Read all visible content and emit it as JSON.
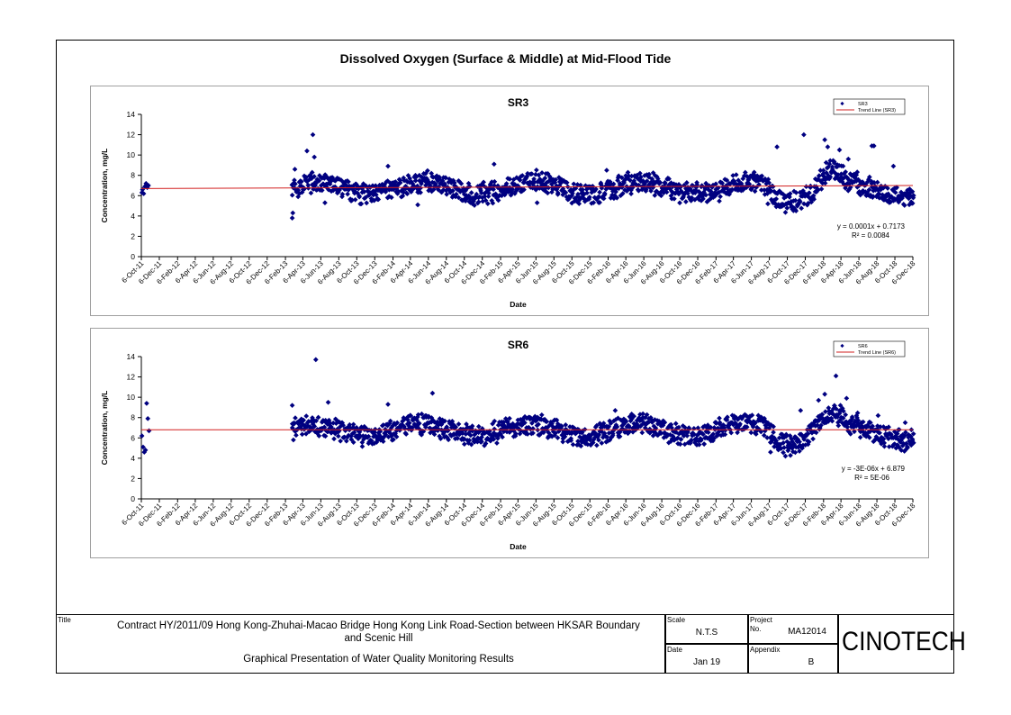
{
  "main_title": "Dissolved Oxygen (Surface & Middle) at Mid-Flood Tide",
  "x_tick_labels": [
    "6-Oct-11",
    "6-Dec-11",
    "6-Feb-12",
    "6-Apr-12",
    "6-Jun-12",
    "6-Aug-12",
    "6-Oct-12",
    "6-Dec-12",
    "6-Feb-13",
    "6-Apr-13",
    "6-Jun-13",
    "6-Aug-13",
    "6-Oct-13",
    "6-Dec-13",
    "6-Feb-14",
    "6-Apr-14",
    "6-Jun-14",
    "6-Aug-14",
    "6-Oct-14",
    "6-Dec-14",
    "6-Feb-15",
    "6-Apr-15",
    "6-Jun-15",
    "6-Aug-15",
    "6-Oct-15",
    "6-Dec-15",
    "6-Feb-16",
    "6-Apr-16",
    "6-Jun-16",
    "6-Aug-16",
    "6-Oct-16",
    "6-Dec-16",
    "6-Feb-17",
    "6-Apr-17",
    "6-Jun-17",
    "6-Aug-17",
    "6-Oct-17",
    "6-Dec-17",
    "6-Feb-18",
    "6-Apr-18",
    "6-Jun-18",
    "6-Aug-18",
    "6-Oct-18",
    "6-Dec-18"
  ],
  "chart_data": [
    {
      "type": "scatter",
      "title": "SR3",
      "xlabel": "Date",
      "ylabel": "Concentration, mg/L",
      "ylim": [
        0,
        14
      ],
      "y_ticks": [
        0,
        2,
        4,
        6,
        8,
        10,
        12,
        14
      ],
      "xlim": [
        "6-Oct-11",
        "6-Dec-18"
      ],
      "grid": false,
      "legend_position": "top-right",
      "legend": [
        "SR3",
        "Trend Line (SR3)"
      ],
      "equation": "y = 0.0001x + 0.7173",
      "r_squared": "R² = 0.0084",
      "trend_line": {
        "x": [
          "6-Oct-11",
          "6-Dec-18"
        ],
        "y": [
          6.7,
          7.0
        ]
      },
      "series": [
        {
          "name": "SR3",
          "points": [
            {
              "x": "2011-10-08",
              "y": 6.3
            },
            {
              "x": "2011-10-10",
              "y": 6.6
            },
            {
              "x": "2011-10-14",
              "y": 6.2
            },
            {
              "x": "2011-10-18",
              "y": 6.9
            },
            {
              "x": "2011-10-22",
              "y": 7.2
            },
            {
              "x": "2011-10-26",
              "y": 6.8
            },
            {
              "x": "2011-10-30",
              "y": 7.0
            },
            {
              "x": "2013-03-01",
              "y": 3.8
            },
            {
              "x": "2013-03-03",
              "y": 4.3
            },
            {
              "x": "2013-03-10",
              "y": 8.6
            },
            {
              "x": "2013-04-20",
              "y": 10.4
            },
            {
              "x": "2013-05-10",
              "y": 12.0
            },
            {
              "x": "2013-05-15",
              "y": 9.8
            },
            {
              "x": "2013-06-20",
              "y": 5.3
            },
            {
              "x": "2013-10-01",
              "y": 5.6
            },
            {
              "x": "2014-01-20",
              "y": 8.9
            },
            {
              "x": "2014-05-01",
              "y": 5.1
            },
            {
              "x": "2015-01-15",
              "y": 9.1
            },
            {
              "x": "2015-06-10",
              "y": 5.3
            },
            {
              "x": "2016-02-01",
              "y": 8.5
            },
            {
              "x": "2017-08-01",
              "y": 5.2
            },
            {
              "x": "2017-09-01",
              "y": 10.8
            },
            {
              "x": "2017-10-20",
              "y": 5.4
            },
            {
              "x": "2017-12-01",
              "y": 12.0
            },
            {
              "x": "2018-02-10",
              "y": 11.5
            },
            {
              "x": "2018-02-20",
              "y": 10.8
            },
            {
              "x": "2018-04-01",
              "y": 10.5
            },
            {
              "x": "2018-05-01",
              "y": 9.6
            },
            {
              "x": "2018-07-20",
              "y": 10.9
            },
            {
              "x": "2018-07-27",
              "y": 10.9
            },
            {
              "x": "2018-10-01",
              "y": 8.9
            },
            {
              "x": "2018-11-20",
              "y": 6.2
            },
            {
              "x": "2018-12-01",
              "y": 6.4
            }
          ]
        }
      ]
    },
    {
      "type": "scatter",
      "title": "SR6",
      "xlabel": "Date",
      "ylabel": "Concentration, mg/L",
      "ylim": [
        0,
        14
      ],
      "y_ticks": [
        0,
        2,
        4,
        6,
        8,
        10,
        12,
        14
      ],
      "xlim": [
        "6-Oct-11",
        "6-Dec-18"
      ],
      "grid": false,
      "legend_position": "top-right",
      "legend": [
        "SR6",
        "Trend Line (SR6)"
      ],
      "equation": "y = -3E-06x + 6.879",
      "r_squared": "R² = 5E-06",
      "trend_line": {
        "x": [
          "6-Oct-11",
          "6-Dec-18"
        ],
        "y": [
          6.8,
          6.8
        ]
      },
      "series": [
        {
          "name": "SR6",
          "points": [
            {
              "x": "2011-10-08",
              "y": 6.2
            },
            {
              "x": "2011-10-12",
              "y": 5.1
            },
            {
              "x": "2011-10-16",
              "y": 4.6
            },
            {
              "x": "2011-10-20",
              "y": 4.8
            },
            {
              "x": "2011-10-24",
              "y": 9.4
            },
            {
              "x": "2011-10-28",
              "y": 7.9
            },
            {
              "x": "2011-11-01",
              "y": 6.7
            },
            {
              "x": "2013-03-01",
              "y": 9.2
            },
            {
              "x": "2013-03-05",
              "y": 5.8
            },
            {
              "x": "2013-05-20",
              "y": 13.7
            },
            {
              "x": "2013-07-01",
              "y": 9.5
            },
            {
              "x": "2014-01-20",
              "y": 9.3
            },
            {
              "x": "2014-06-20",
              "y": 10.4
            },
            {
              "x": "2016-03-01",
              "y": 8.7
            },
            {
              "x": "2017-08-10",
              "y": 4.6
            },
            {
              "x": "2017-11-20",
              "y": 8.7
            },
            {
              "x": "2018-01-20",
              "y": 9.7
            },
            {
              "x": "2018-02-10",
              "y": 10.3
            },
            {
              "x": "2018-03-20",
              "y": 12.1
            },
            {
              "x": "2018-04-25",
              "y": 9.9
            },
            {
              "x": "2018-08-10",
              "y": 8.2
            },
            {
              "x": "2018-10-10",
              "y": 5.0
            },
            {
              "x": "2018-11-10",
              "y": 7.5
            },
            {
              "x": "2018-12-01",
              "y": 6.8
            }
          ]
        }
      ]
    }
  ],
  "titleblock": {
    "title_label": "Title",
    "title_line1": "Contract HY/2011/09 Hong Kong-Zhuhai-Macao Bridge Hong Kong Link Road-Section between HKSAR Boundary",
    "title_line2": "and Scenic Hill",
    "subtitle": "Graphical Presentation of Water Quality Monitoring Results",
    "scale_label": "Scale",
    "scale_value": "N.T.S",
    "date_label": "Date",
    "date_value": "Jan 19",
    "project_label": "Project",
    "project_no_label": "No.",
    "project_no_value": "MA12014",
    "appendix_label": "Appendix",
    "appendix_value": "B",
    "logo": "CINOTECH"
  },
  "colors": {
    "marker": "#000080",
    "trend": "#d21f1f",
    "axis": "#000000",
    "panel_border": "#a0a0a0"
  }
}
